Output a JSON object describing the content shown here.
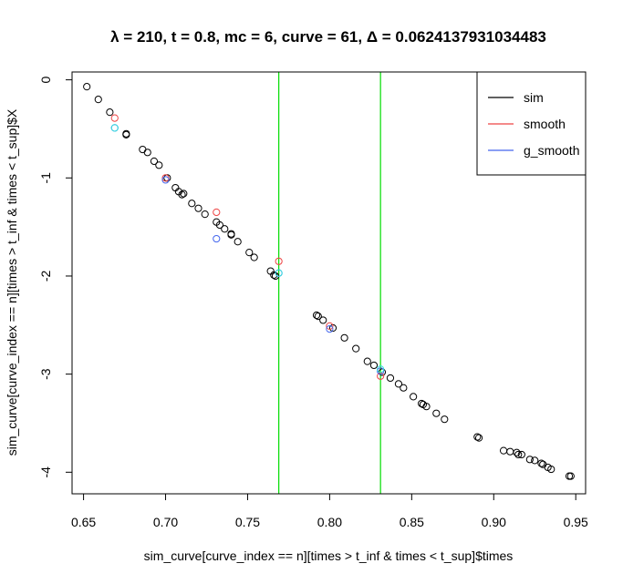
{
  "chart_data": {
    "type": "scatter",
    "title": "λ = 210, t = 0.8, mc = 6, curve = 61, Δ = 0.0624137931034483",
    "xlabel": "sim_curve[curve_index == n][times > t_inf & times < t_sup]$times",
    "ylabel": "sim_curve[curve_index == n][times > t_inf & times < t_sup]$X",
    "xlim": [
      0.643,
      0.956
    ],
    "ylim": [
      -4.22,
      0.08
    ],
    "x_ticks": [
      0.65,
      0.7,
      0.75,
      0.8,
      0.85,
      0.9,
      0.95
    ],
    "x_tick_labels": [
      "0.65",
      "0.70",
      "0.75",
      "0.80",
      "0.85",
      "0.90",
      "0.95"
    ],
    "y_ticks": [
      0,
      -1,
      -2,
      -3,
      -4
    ],
    "y_tick_labels": [
      "0",
      "-1",
      "-2",
      "-3",
      "-4"
    ],
    "grid": false,
    "legend_position": "top-right",
    "vlines": {
      "color": "#00dd00",
      "x": [
        0.769,
        0.831
      ]
    },
    "series": [
      {
        "name": "sim",
        "color": "#000000",
        "marker": "open-circle",
        "points": [
          [
            0.652,
            -0.07
          ],
          [
            0.659,
            -0.2
          ],
          [
            0.666,
            -0.33
          ],
          [
            0.676,
            -0.55
          ],
          [
            0.676,
            -0.56
          ],
          [
            0.686,
            -0.71
          ],
          [
            0.689,
            -0.74
          ],
          [
            0.693,
            -0.83
          ],
          [
            0.696,
            -0.87
          ],
          [
            0.701,
            -1.0
          ],
          [
            0.706,
            -1.1
          ],
          [
            0.708,
            -1.14
          ],
          [
            0.71,
            -1.17
          ],
          [
            0.711,
            -1.16
          ],
          [
            0.716,
            -1.26
          ],
          [
            0.72,
            -1.31
          ],
          [
            0.724,
            -1.37
          ],
          [
            0.731,
            -1.45
          ],
          [
            0.733,
            -1.48
          ],
          [
            0.736,
            -1.52
          ],
          [
            0.74,
            -1.57
          ],
          [
            0.74,
            -1.58
          ],
          [
            0.744,
            -1.65
          ],
          [
            0.751,
            -1.76
          ],
          [
            0.754,
            -1.81
          ],
          [
            0.764,
            -1.95
          ],
          [
            0.766,
            -1.99
          ],
          [
            0.767,
            -2.0
          ],
          [
            0.792,
            -2.4
          ],
          [
            0.793,
            -2.41
          ],
          [
            0.796,
            -2.45
          ],
          [
            0.802,
            -2.53
          ],
          [
            0.809,
            -2.63
          ],
          [
            0.816,
            -2.74
          ],
          [
            0.823,
            -2.87
          ],
          [
            0.827,
            -2.91
          ],
          [
            0.832,
            -2.98
          ],
          [
            0.837,
            -3.04
          ],
          [
            0.842,
            -3.1
          ],
          [
            0.845,
            -3.14
          ],
          [
            0.851,
            -3.23
          ],
          [
            0.856,
            -3.3
          ],
          [
            0.857,
            -3.31
          ],
          [
            0.859,
            -3.33
          ],
          [
            0.865,
            -3.4
          ],
          [
            0.87,
            -3.46
          ],
          [
            0.89,
            -3.64
          ],
          [
            0.891,
            -3.65
          ],
          [
            0.906,
            -3.78
          ],
          [
            0.91,
            -3.79
          ],
          [
            0.914,
            -3.8
          ],
          [
            0.915,
            -3.82
          ],
          [
            0.917,
            -3.82
          ],
          [
            0.922,
            -3.87
          ],
          [
            0.925,
            -3.88
          ],
          [
            0.929,
            -3.91
          ],
          [
            0.93,
            -3.92
          ],
          [
            0.933,
            -3.95
          ],
          [
            0.935,
            -3.97
          ],
          [
            0.946,
            -4.04
          ],
          [
            0.947,
            -4.04
          ]
        ]
      },
      {
        "name": "smooth",
        "color": "#ee4444",
        "marker": "open-circle",
        "points": [
          [
            0.669,
            -0.39
          ],
          [
            0.7,
            -1.0
          ],
          [
            0.731,
            -1.35
          ],
          [
            0.769,
            -1.85
          ],
          [
            0.8,
            -2.51
          ],
          [
            0.831,
            -3.02
          ]
        ]
      },
      {
        "name": "g_smooth",
        "color": "#4466ee",
        "marker": "open-circle",
        "points": [
          [
            0.669,
            -0.49
          ],
          [
            0.7,
            -1.02
          ],
          [
            0.731,
            -1.62
          ],
          [
            0.769,
            -1.97
          ],
          [
            0.8,
            -2.54
          ],
          [
            0.831,
            -2.97
          ]
        ]
      },
      {
        "name": "",
        "color": "#33dddd",
        "marker": "open-circle",
        "points": [
          [
            0.669,
            -0.49
          ],
          [
            0.769,
            -1.97
          ],
          [
            0.831,
            -2.95
          ]
        ]
      }
    ],
    "legend": [
      {
        "label": "sim",
        "color": "#000000"
      },
      {
        "label": "smooth",
        "color": "#ee4444"
      },
      {
        "label": "g_smooth",
        "color": "#4466ee"
      }
    ]
  }
}
